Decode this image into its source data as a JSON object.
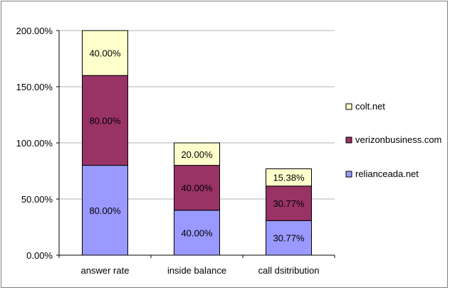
{
  "chart_data": {
    "type": "bar",
    "stacked": true,
    "categories": [
      "answer rate",
      "inside balance",
      "call dsitribution"
    ],
    "series": [
      {
        "name": "relianceada.net",
        "values": [
          80.0,
          40.0,
          30.77
        ],
        "labels": [
          "80.00%",
          "40.00%",
          "30.77%"
        ],
        "color": "#9999ff"
      },
      {
        "name": "verizonbusiness.com",
        "values": [
          80.0,
          40.0,
          30.77
        ],
        "labels": [
          "80.00%",
          "40.00%",
          "30.77%"
        ],
        "color": "#993366"
      },
      {
        "name": "colt.net",
        "values": [
          40.0,
          20.0,
          15.38
        ],
        "labels": [
          "40.00%",
          "20.00%",
          "15.38%"
        ],
        "color": "#ffffcc"
      }
    ],
    "yticks": [
      "0.00%",
      "50.00%",
      "100.00%",
      "150.00%",
      "200.00%"
    ],
    "ylim": [
      0,
      200
    ],
    "grid": true,
    "legend_position": "right",
    "title": "",
    "xlabel": "",
    "ylabel": ""
  }
}
